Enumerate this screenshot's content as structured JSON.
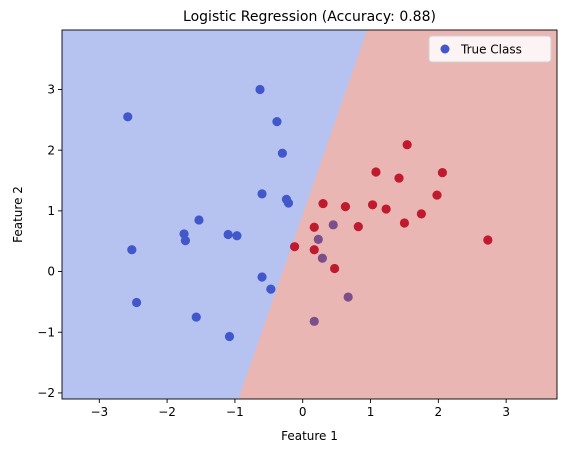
{
  "chart_data": {
    "type": "scatter",
    "title": "Logistic Regression (Accuracy: 0.88)",
    "xlabel": "Feature 1",
    "ylabel": "Feature 2",
    "xlim": [
      -3.55,
      3.75
    ],
    "ylim": [
      -2.1,
      3.98
    ],
    "x_ticks": [
      -3,
      -2,
      -1,
      0,
      1,
      2,
      3
    ],
    "y_ticks": [
      -2,
      -1,
      0,
      1,
      2,
      3
    ],
    "grid": false,
    "legend": {
      "placement": "top-right",
      "entries": [
        "True Class"
      ]
    },
    "decision_boundary": [
      {
        "x": -0.95,
        "y": -2.1
      },
      {
        "x": -0.0,
        "y": 1.0
      },
      {
        "x": 0.0,
        "y": 1.0
      },
      {
        "x": 0.95,
        "y": 3.98
      }
    ],
    "regions": [
      {
        "label": "class 0",
        "color": "#b6c3f0"
      },
      {
        "label": "class 1",
        "color": "#eab6b3"
      }
    ],
    "colors": {
      "class_0": "#4257c9",
      "class_1": "#bf1a2d",
      "mixed": "#7a4f8a"
    },
    "points": [
      {
        "x": -2.58,
        "y": 2.55,
        "c": 0
      },
      {
        "x": -2.52,
        "y": 0.36,
        "c": 0
      },
      {
        "x": -2.45,
        "y": -0.51,
        "c": 0
      },
      {
        "x": -1.75,
        "y": 0.62,
        "c": 0
      },
      {
        "x": -1.73,
        "y": 0.51,
        "c": 0
      },
      {
        "x": -1.53,
        "y": 0.85,
        "c": 0
      },
      {
        "x": -1.57,
        "y": -0.75,
        "c": 0
      },
      {
        "x": -1.1,
        "y": 0.61,
        "c": 0
      },
      {
        "x": -0.97,
        "y": 0.59,
        "c": 0
      },
      {
        "x": -1.08,
        "y": -1.07,
        "c": 0
      },
      {
        "x": -0.63,
        "y": 3.0,
        "c": 0
      },
      {
        "x": -0.38,
        "y": 2.47,
        "c": 0
      },
      {
        "x": -0.3,
        "y": 1.95,
        "c": 0
      },
      {
        "x": -0.6,
        "y": 1.28,
        "c": 0
      },
      {
        "x": -0.24,
        "y": 1.19,
        "c": 0
      },
      {
        "x": -0.21,
        "y": 1.13,
        "c": 0
      },
      {
        "x": -0.6,
        "y": -0.09,
        "c": 0
      },
      {
        "x": -0.47,
        "y": -0.29,
        "c": 0
      },
      {
        "x": -0.12,
        "y": 0.41,
        "c": 1
      },
      {
        "x": 0.17,
        "y": 0.73,
        "c": 1
      },
      {
        "x": 0.17,
        "y": 0.36,
        "c": 1
      },
      {
        "x": 0.23,
        "y": 0.53,
        "c": 2
      },
      {
        "x": 0.3,
        "y": 1.12,
        "c": 1
      },
      {
        "x": 0.45,
        "y": 0.77,
        "c": 2
      },
      {
        "x": 0.29,
        "y": 0.22,
        "c": 2
      },
      {
        "x": 0.47,
        "y": 0.05,
        "c": 1
      },
      {
        "x": 0.63,
        "y": 1.07,
        "c": 1
      },
      {
        "x": 0.82,
        "y": 0.74,
        "c": 1
      },
      {
        "x": 0.67,
        "y": -0.42,
        "c": 2
      },
      {
        "x": 0.17,
        "y": -0.82,
        "c": 2
      },
      {
        "x": 1.03,
        "y": 1.1,
        "c": 1
      },
      {
        "x": 1.08,
        "y": 1.64,
        "c": 1
      },
      {
        "x": 1.23,
        "y": 1.03,
        "c": 1
      },
      {
        "x": 1.42,
        "y": 1.54,
        "c": 1
      },
      {
        "x": 1.5,
        "y": 0.8,
        "c": 1
      },
      {
        "x": 1.54,
        "y": 2.09,
        "c": 1
      },
      {
        "x": 1.75,
        "y": 0.95,
        "c": 1
      },
      {
        "x": 1.98,
        "y": 1.26,
        "c": 1
      },
      {
        "x": 2.06,
        "y": 1.63,
        "c": 1
      },
      {
        "x": 2.73,
        "y": 0.52,
        "c": 1
      }
    ]
  }
}
